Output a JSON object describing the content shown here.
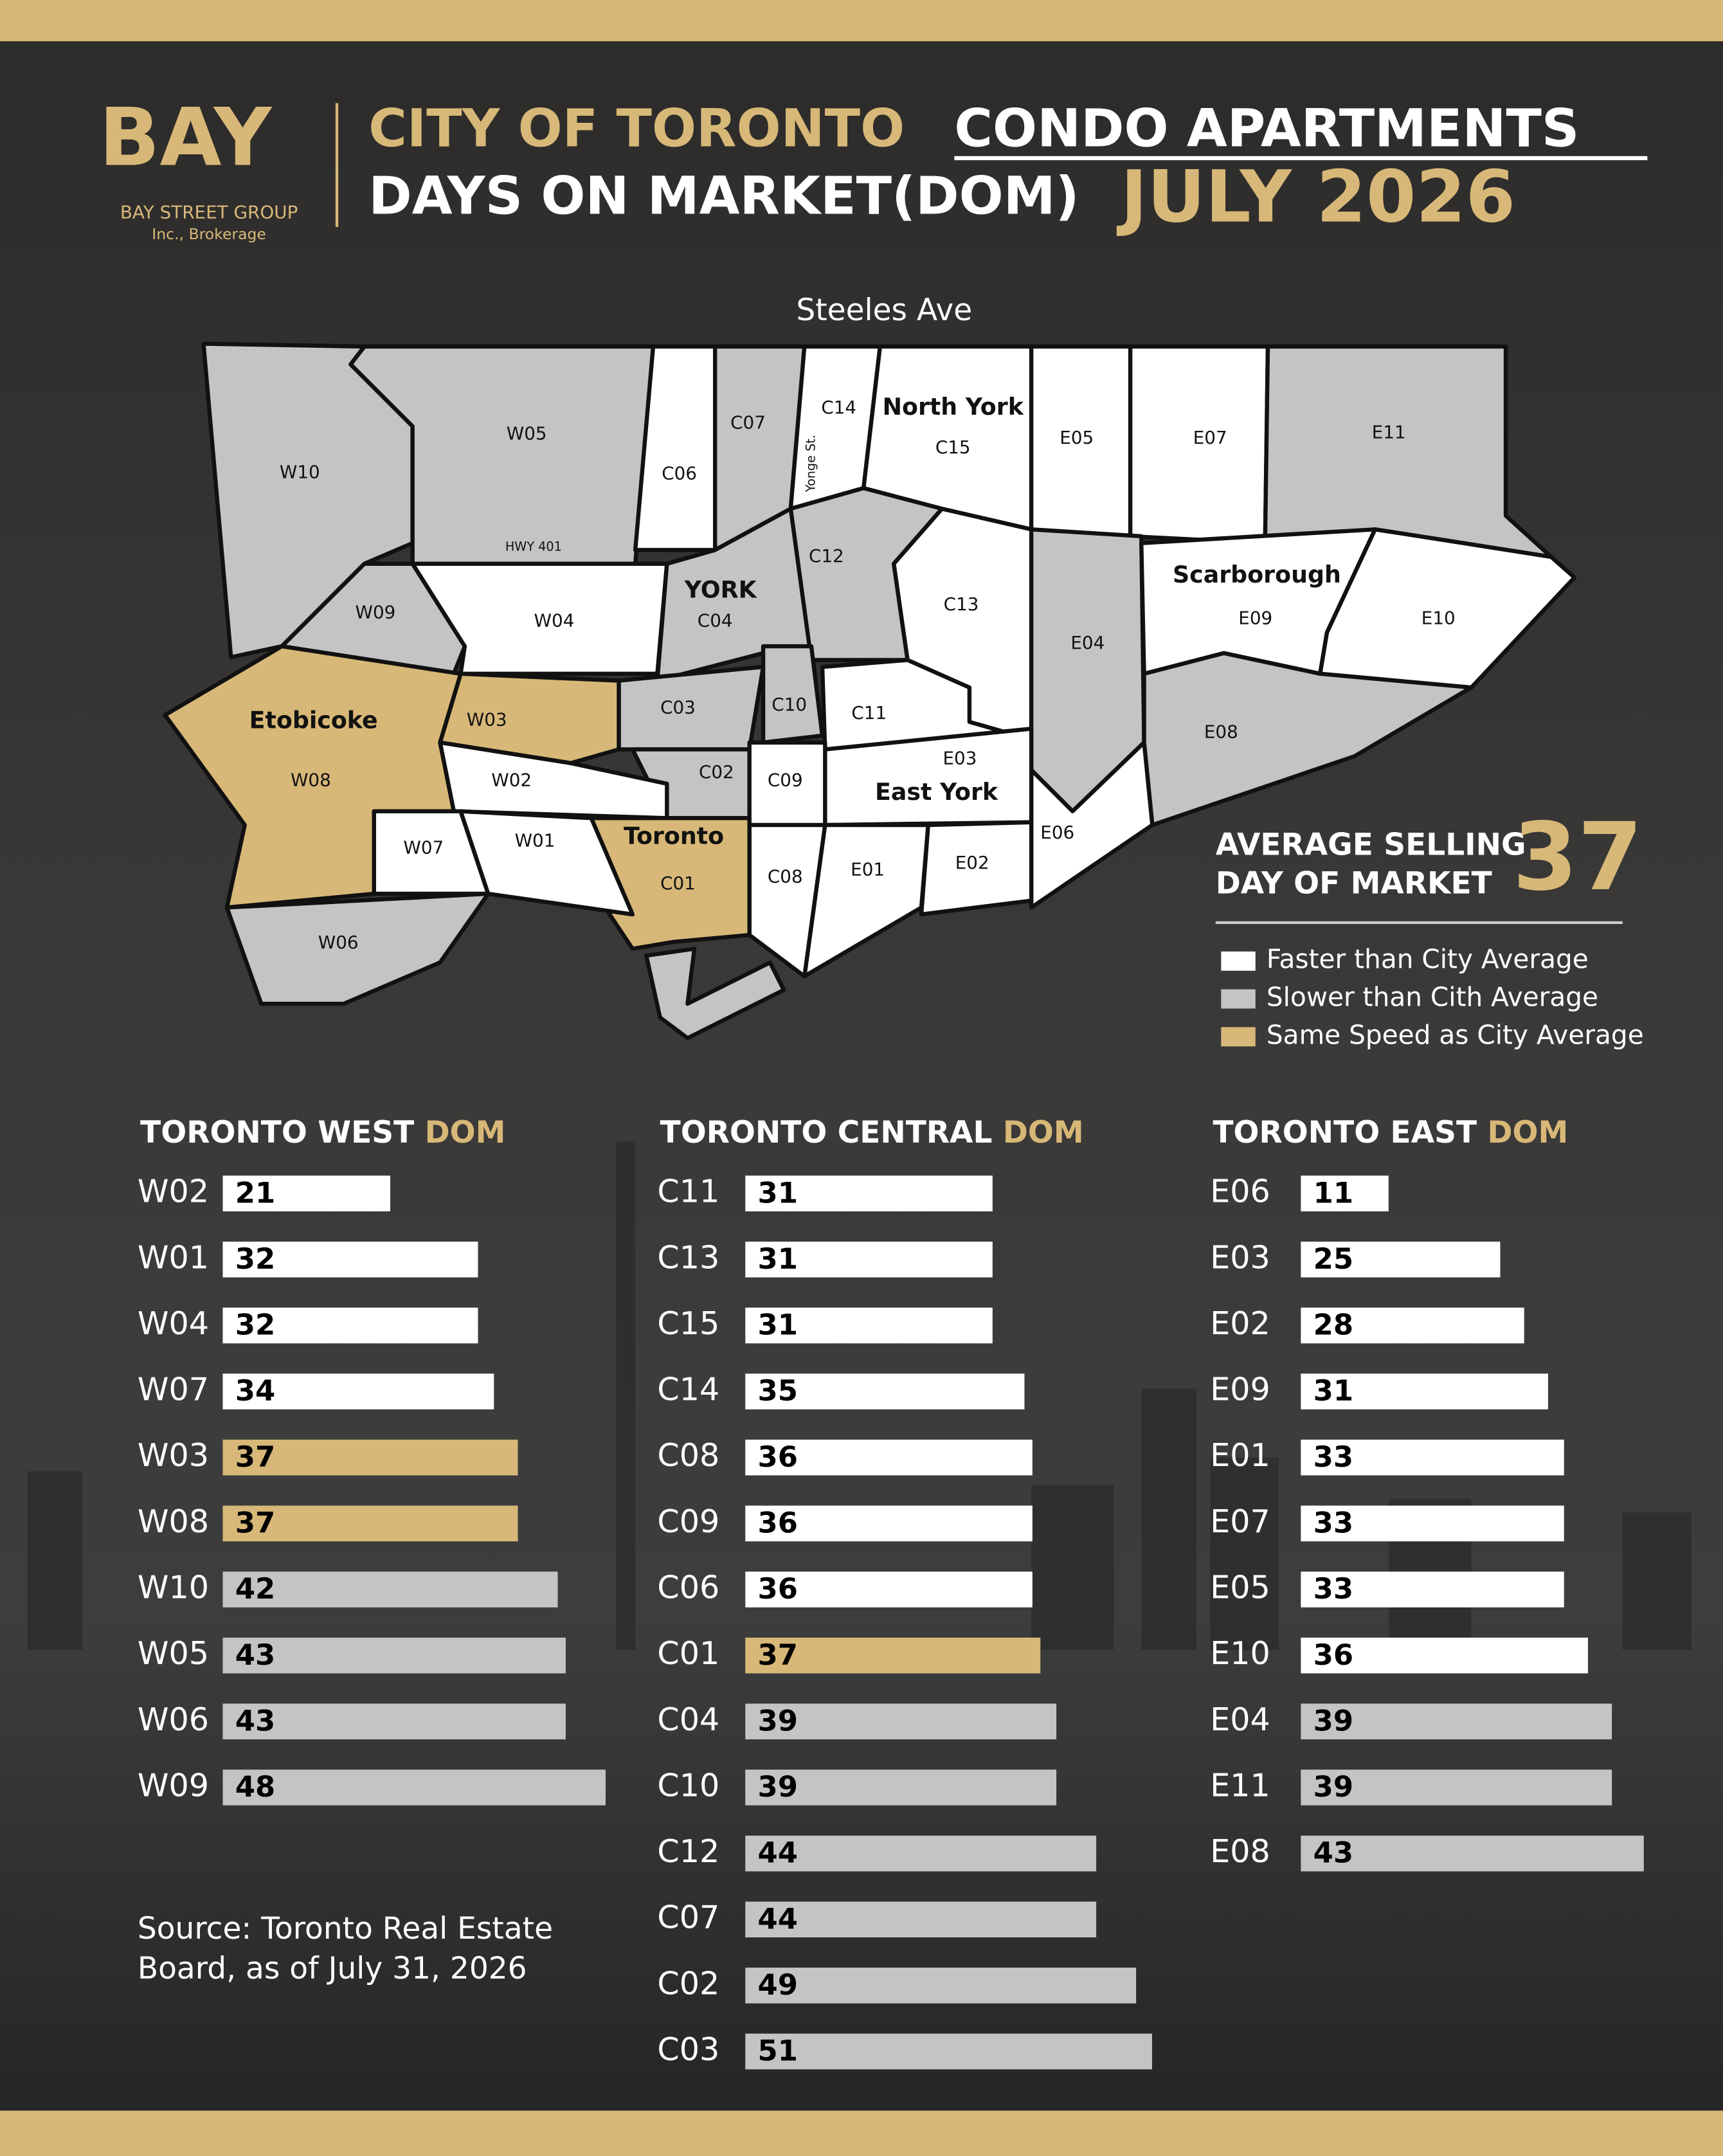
{
  "header": {
    "logo": "BAY",
    "company": "BAY STREET GROUP",
    "company_sub": "Inc., Brokerage",
    "title_part1": "CITY OF TORONTO",
    "title_part2": "CONDO APARTMENTS",
    "title_line2": "DAYS ON MARKET(DOM)",
    "period": "JULY 2026"
  },
  "map": {
    "road_labels": [
      "Steeles Ave",
      "HWY 401",
      "Yonge St."
    ],
    "areas": [
      "North York",
      "Scarborough",
      "YORK",
      "Etobicoke",
      "East York",
      "Toronto"
    ],
    "regions": [
      "W10",
      "W05",
      "C06",
      "C07",
      "C14",
      "C15",
      "E05",
      "E07",
      "E11",
      "W09",
      "W04",
      "C04",
      "C12",
      "C13",
      "E04",
      "E09",
      "E10",
      "E08",
      "E06",
      "C11",
      "E03",
      "E01",
      "E02",
      "C10",
      "C03",
      "C02",
      "C09",
      "C08",
      "C01",
      "W03",
      "W02",
      "W08",
      "W07",
      "W01",
      "W06"
    ]
  },
  "summary": {
    "label_line1": "AVERAGE SELLING",
    "label_line2": "DAY OF MARKET",
    "value": 37
  },
  "legend": [
    {
      "label": "Faster than City Average",
      "color": "#ffffff"
    },
    {
      "label": "Slower than Cith Average",
      "color": "#c4c4c6"
    },
    {
      "label": "Same Speed as City Average",
      "color": "#d8b878"
    }
  ],
  "source": [
    "Source: Toronto Real Estate",
    "Board, as of July 31, 2026"
  ],
  "chart_data": [
    {
      "type": "bar",
      "orientation": "horizontal",
      "title": "TORONTO WEST",
      "title_suffix": "DOM",
      "xlim": [
        0,
        60
      ],
      "categories": [
        "W02",
        "W01",
        "W04",
        "W07",
        "W03",
        "W08",
        "W10",
        "W05",
        "W06",
        "W09"
      ],
      "values": [
        21,
        32,
        32,
        34,
        37,
        37,
        42,
        43,
        43,
        48
      ],
      "colors": [
        "#ffffff",
        "#ffffff",
        "#ffffff",
        "#ffffff",
        "#d8b878",
        "#d8b878",
        "#c4c4c6",
        "#c4c4c6",
        "#c4c4c6",
        "#c4c4c6"
      ]
    },
    {
      "type": "bar",
      "orientation": "horizontal",
      "title": "TORONTO CENTRAL",
      "title_suffix": "DOM",
      "xlim": [
        0,
        60
      ],
      "categories": [
        "C11",
        "C13",
        "C15",
        "C14",
        "C08",
        "C09",
        "C06",
        "C01",
        "C04",
        "C10",
        "C12",
        "C07",
        "C02",
        "C03"
      ],
      "values": [
        31,
        31,
        31,
        35,
        36,
        36,
        36,
        37,
        39,
        39,
        44,
        44,
        49,
        51
      ],
      "colors": [
        "#ffffff",
        "#ffffff",
        "#ffffff",
        "#ffffff",
        "#ffffff",
        "#ffffff",
        "#ffffff",
        "#d8b878",
        "#c4c4c6",
        "#c4c4c6",
        "#c4c4c6",
        "#c4c4c6",
        "#c4c4c6",
        "#c4c4c6"
      ]
    },
    {
      "type": "bar",
      "orientation": "horizontal",
      "title": "TORONTO EAST",
      "title_suffix": "DOM",
      "xlim": [
        0,
        60
      ],
      "categories": [
        "E06",
        "E03",
        "E02",
        "E09",
        "E01",
        "E07",
        "E05",
        "E10",
        "E04",
        "E11",
        "E08"
      ],
      "values": [
        11,
        25,
        28,
        31,
        33,
        33,
        33,
        36,
        39,
        39,
        43
      ],
      "colors": [
        "#ffffff",
        "#ffffff",
        "#ffffff",
        "#ffffff",
        "#ffffff",
        "#ffffff",
        "#ffffff",
        "#ffffff",
        "#c4c4c6",
        "#c4c4c6",
        "#c4c4c6"
      ]
    }
  ]
}
